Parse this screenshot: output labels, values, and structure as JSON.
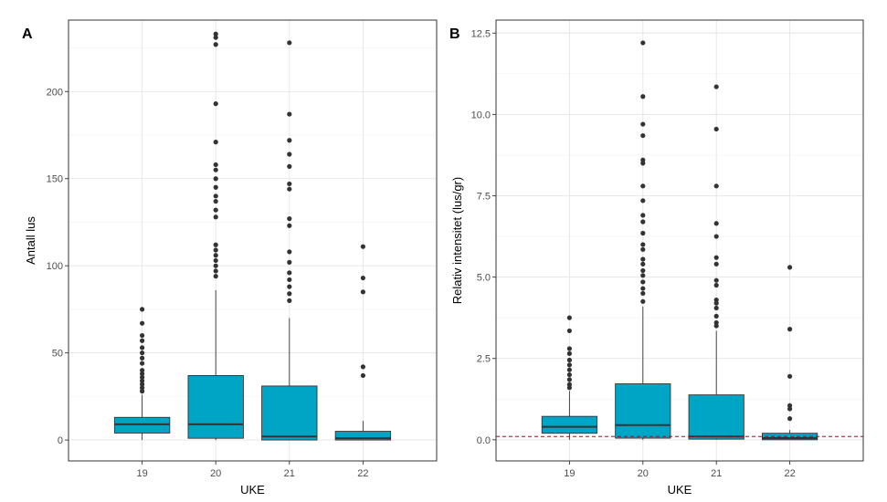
{
  "chart_data": [
    {
      "type": "boxplot",
      "panel_tag": "A",
      "xlabel": "UKE",
      "ylabel": "Antall lus",
      "categories": [
        "19",
        "20",
        "21",
        "22"
      ],
      "ylim": [
        -12,
        241
      ],
      "yticks": [
        0,
        50,
        100,
        150,
        200
      ],
      "ytick_labels": [
        "0",
        "50",
        "100",
        "150",
        "200"
      ],
      "grid": true,
      "box_color": "#00A5C6",
      "boxes": [
        {
          "category": "19",
          "q1": 4,
          "median": 9,
          "q3": 13,
          "whisker_low": 0,
          "whisker_high": 26,
          "outliers": [
            75,
            67,
            60,
            57,
            53,
            50,
            47,
            44,
            40,
            38,
            36,
            34,
            32,
            30,
            28
          ]
        },
        {
          "category": "20",
          "q1": 1,
          "median": 9,
          "q3": 37,
          "whisker_low": 0,
          "whisker_high": 86,
          "outliers": [
            233,
            231,
            227,
            193,
            171,
            158,
            155,
            150,
            145,
            140,
            137,
            132,
            128,
            112,
            109,
            106,
            103,
            100,
            97,
            94
          ]
        },
        {
          "category": "21",
          "q1": 0,
          "median": 2,
          "q3": 31,
          "whisker_low": 0,
          "whisker_high": 70,
          "outliers": [
            228,
            187,
            172,
            164,
            157,
            147,
            144,
            127,
            123,
            108,
            102,
            96,
            92,
            88,
            84,
            80
          ]
        },
        {
          "category": "22",
          "q1": 0,
          "median": 1,
          "q3": 5,
          "whisker_low": 0,
          "whisker_high": 11,
          "outliers": [
            111,
            93,
            85,
            42,
            37
          ]
        }
      ]
    },
    {
      "type": "boxplot",
      "panel_tag": "B",
      "xlabel": "UKE",
      "ylabel": "Relativ intensitet (lus/gr)",
      "categories": [
        "19",
        "20",
        "21",
        "22"
      ],
      "ylim": [
        -0.65,
        12.9
      ],
      "yticks": [
        0,
        2.5,
        5,
        7.5,
        10,
        12.5
      ],
      "ytick_labels": [
        "0.0",
        "2.5",
        "5.0",
        "7.5",
        "10.0",
        "12.5"
      ],
      "grid": true,
      "box_color": "#00A5C6",
      "reference_line": {
        "y": 0.1,
        "style": "dashed",
        "color": "#8B1A1A"
      },
      "boxes": [
        {
          "category": "19",
          "q1": 0.2,
          "median": 0.4,
          "q3": 0.72,
          "whisker_low": 0,
          "whisker_high": 1.5,
          "outliers": [
            3.75,
            3.35,
            2.8,
            2.65,
            2.45,
            2.3,
            2.15,
            2.0,
            1.85,
            1.7,
            1.6
          ]
        },
        {
          "category": "20",
          "q1": 0.05,
          "median": 0.45,
          "q3": 1.72,
          "whisker_low": 0,
          "whisker_high": 4.1,
          "outliers": [
            12.2,
            10.55,
            9.7,
            9.35,
            8.6,
            8.5,
            7.8,
            7.35,
            6.9,
            6.7,
            6.35,
            6.0,
            5.85,
            5.55,
            5.4,
            5.2,
            5.05,
            4.85,
            4.65,
            4.5,
            4.25
          ]
        },
        {
          "category": "21",
          "q1": 0.02,
          "median": 0.1,
          "q3": 1.38,
          "whisker_low": 0,
          "whisker_high": 3.35,
          "outliers": [
            10.85,
            9.55,
            7.8,
            6.65,
            6.25,
            5.6,
            5.4,
            4.9,
            4.75,
            4.3,
            4.2,
            4.05,
            3.8,
            3.6,
            3.5
          ]
        },
        {
          "category": "22",
          "q1": 0.0,
          "median": 0.05,
          "q3": 0.2,
          "whisker_low": 0,
          "whisker_high": 0.3,
          "outliers": [
            5.3,
            3.4,
            1.95,
            1.05,
            0.95,
            0.65
          ]
        }
      ]
    }
  ]
}
